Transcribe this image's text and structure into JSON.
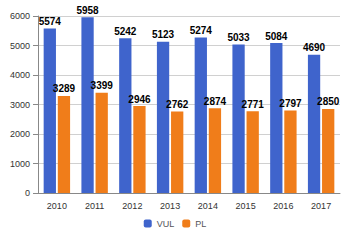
{
  "chart_data": {
    "type": "bar",
    "categories": [
      "2010",
      "2011",
      "2012",
      "2013",
      "2014",
      "2015",
      "2016",
      "2017"
    ],
    "series": [
      {
        "name": "VUL",
        "color": "#3f64cc",
        "values": [
          5574,
          5958,
          5242,
          5123,
          5274,
          5033,
          5084,
          4690
        ]
      },
      {
        "name": "PL",
        "color": "#f07d1a",
        "values": [
          3289,
          3399,
          2946,
          2762,
          2874,
          2771,
          2797,
          2850
        ]
      }
    ],
    "ylim": [
      0,
      6000
    ],
    "yticks": [
      0,
      1000,
      2000,
      3000,
      4000,
      5000,
      6000
    ],
    "grid": true,
    "legend": "bottom",
    "data_labels": true
  }
}
